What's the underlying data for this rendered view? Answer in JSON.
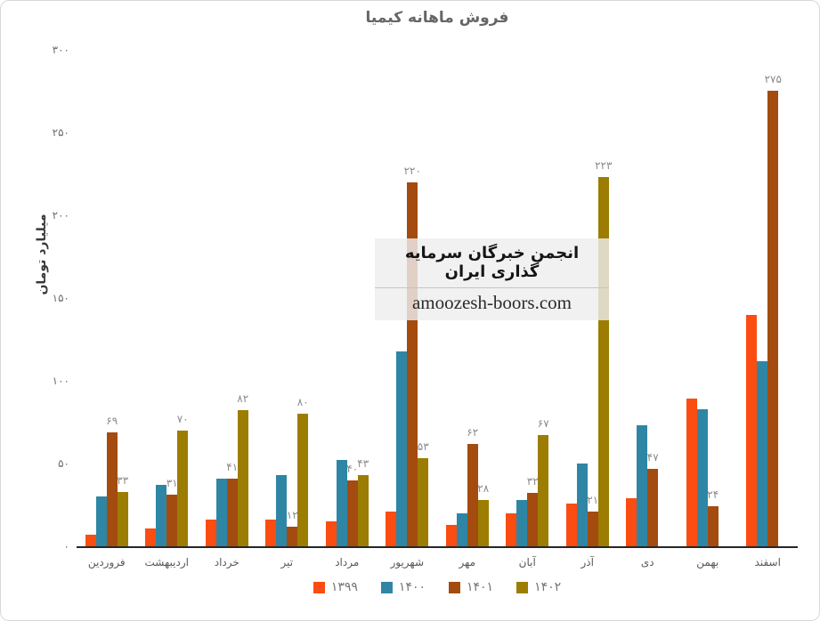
{
  "title": "فروش ماهانه کیمیا",
  "watermark": {
    "org": "انجمن خبرگان سرمایه گذاری ایران",
    "site": "amoozesh-boors.com"
  },
  "chart_data": {
    "type": "bar",
    "title": "فروش ماهانه کیمیا",
    "xlabel": "",
    "ylabel": "میلیارد تومان",
    "ylim": [
      0,
      300
    ],
    "grid": false,
    "legend_position": "bottom",
    "categories": [
      "فروردین",
      "اردیبهشت",
      "خرداد",
      "تیر",
      "مرداد",
      "شهریور",
      "مهر",
      "آبان",
      "آذر",
      "دی",
      "بهمن",
      "اسفند"
    ],
    "y_ticks": [
      {
        "value": 0,
        "label": "۰"
      },
      {
        "value": 50,
        "label": "۵۰"
      },
      {
        "value": 100,
        "label": "۱۰۰"
      },
      {
        "value": 150,
        "label": "۱۵۰"
      },
      {
        "value": 200,
        "label": "۲۰۰"
      },
      {
        "value": 250,
        "label": "۲۵۰"
      },
      {
        "value": 300,
        "label": "۳۰۰"
      }
    ],
    "series": [
      {
        "id": "1399",
        "name": "۱۳۹۹",
        "color": "#FB4D11",
        "values": [
          7,
          11,
          16,
          16,
          15,
          21,
          13,
          20,
          26,
          29,
          89,
          140
        ],
        "data_labels": null
      },
      {
        "id": "1400",
        "name": "۱۴۰۰",
        "color": "#2E86A4",
        "values": [
          30,
          37,
          41,
          43,
          52,
          118,
          20,
          28,
          50,
          73,
          83,
          112
        ],
        "data_labels": null
      },
      {
        "id": "1401",
        "name": "۱۴۰۱",
        "color": "#A44B10",
        "values": [
          69,
          31,
          41,
          12,
          40,
          220,
          62,
          32,
          21,
          47,
          24,
          275
        ],
        "data_labels": [
          "۶۹",
          "۳۱",
          "۴۱",
          "۱۲",
          "۴۰",
          "۲۲۰",
          "۶۲",
          "۳۲",
          "۲۱",
          "۴۷",
          "۲۴",
          "۲۷۵"
        ]
      },
      {
        "id": "1402",
        "name": "۱۴۰۲",
        "color": "#9C7D02",
        "values": [
          33,
          70,
          82,
          80,
          43,
          53,
          28,
          67,
          223,
          0,
          0,
          0
        ],
        "data_labels": [
          "۳۳",
          "۷۰",
          "۸۲",
          "۸۰",
          "۴۳",
          "۵۳",
          "۲۸",
          "۶۷",
          "۲۲۳",
          null,
          null,
          null
        ]
      }
    ]
  }
}
